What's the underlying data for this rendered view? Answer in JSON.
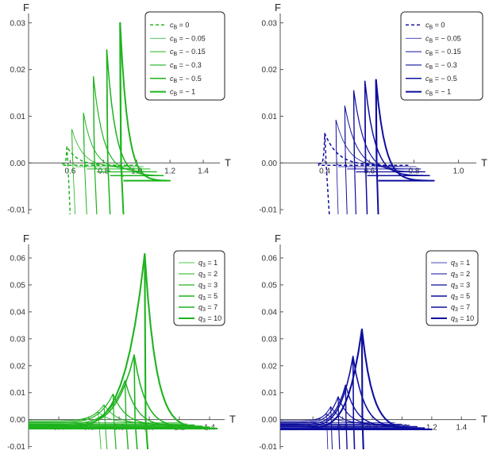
{
  "colors": {
    "green": "#1eb31e",
    "blue": "#0f0f9e",
    "axis": "#555555"
  },
  "chart_data": [
    {
      "id": "top-left",
      "type": "line",
      "xlabel": "T",
      "ylabel": "F",
      "xlim": [
        0.35,
        1.5
      ],
      "ylim": [
        -0.011,
        0.032
      ],
      "x_ticks": [
        0.6,
        0.8,
        1.0,
        1.2,
        1.4
      ],
      "x_tick_labels": [
        "0.6",
        "0.8",
        "1.0",
        "1.2",
        "1.4"
      ],
      "y_ticks": [
        -0.01,
        0.0,
        0.01,
        0.02,
        0.03
      ],
      "y_tick_labels": [
        "-0.01",
        "0.00",
        "0.01",
        "0.02",
        "0.03"
      ],
      "grid": false,
      "legend_position": "top-right",
      "color": "#1eb31e",
      "series": [
        {
          "name": "c_B = 0",
          "label_sub": "B",
          "label_rest": " = 0",
          "dashed": true,
          "width": 1.5,
          "cusp": [
            0.58,
            0.0035
          ],
          "low_end": [
            1.0,
            -0.0005
          ],
          "high_end": [
            0.55,
            -0.0002
          ],
          "branch_bottom": [
            0.6,
            -0.011
          ]
        },
        {
          "name": "c_B = − 0.05",
          "label_sub": "B",
          "label_rest": " = − 0.05",
          "dashed": false,
          "width": 0.8,
          "cusp": [
            0.61,
            0.0072
          ],
          "low_end": [
            1.04,
            -0.0008
          ],
          "high_end": [
            0.63,
            -0.0004
          ],
          "branch_bottom": [
            0.63,
            -0.011
          ]
        },
        {
          "name": "c_B = − 0.15",
          "label_sub": "B",
          "label_rest": " = − 0.15",
          "dashed": false,
          "width": 1.0,
          "cusp": [
            0.68,
            0.0107
          ],
          "low_end": [
            1.08,
            -0.0013
          ],
          "high_end": [
            0.7,
            -0.0007
          ],
          "branch_bottom": [
            0.7,
            -0.011
          ]
        },
        {
          "name": "c_B = − 0.3",
          "label_sub": "B",
          "label_rest": " = − 0.3",
          "dashed": false,
          "width": 1.2,
          "cusp": [
            0.74,
            0.0185
          ],
          "low_end": [
            1.12,
            -0.0019
          ],
          "high_end": [
            0.76,
            -0.0012
          ],
          "branch_bottom": [
            0.76,
            -0.011
          ]
        },
        {
          "name": "c_B = − 0.5",
          "label_sub": "B",
          "label_rest": " = − 0.5",
          "dashed": false,
          "width": 1.5,
          "cusp": [
            0.82,
            0.0242
          ],
          "low_end": [
            1.16,
            -0.0027
          ],
          "high_end": [
            0.84,
            -0.0018
          ],
          "branch_bottom": [
            0.84,
            -0.011
          ]
        },
        {
          "name": "c_B = − 1",
          "label_sub": "B",
          "label_rest": " = − 1",
          "dashed": false,
          "width": 2.0,
          "cusp": [
            0.9,
            0.03
          ],
          "low_end": [
            1.2,
            -0.0038
          ],
          "high_end": [
            0.92,
            -0.0028
          ],
          "branch_bottom": [
            0.92,
            -0.011
          ]
        }
      ]
    },
    {
      "id": "top-right",
      "type": "line",
      "xlabel": "T",
      "ylabel": "F",
      "xlim": [
        0.2,
        1.08
      ],
      "ylim": [
        -0.011,
        0.032
      ],
      "x_ticks": [
        0.4,
        0.6,
        0.8,
        1.0
      ],
      "x_tick_labels": [
        "0.4",
        "0.6",
        "0.8",
        "1.0"
      ],
      "y_ticks": [
        -0.01,
        0.0,
        0.01,
        0.02,
        0.03
      ],
      "y_tick_labels": [
        "-0.01",
        "0.00",
        "0.01",
        "0.02",
        "0.03"
      ],
      "grid": false,
      "legend_position": "top-right",
      "color": "#0f0f9e",
      "series": [
        {
          "name": "c_B = 0",
          "label_sub": "B",
          "label_rest": " = 0",
          "dashed": true,
          "width": 1.5,
          "cusp": [
            0.4,
            0.0063
          ],
          "low_end": [
            0.78,
            -0.0005
          ],
          "high_end": [
            0.37,
            -0.0002
          ],
          "branch_bottom": [
            0.42,
            -0.011
          ]
        },
        {
          "name": "c_B = − 0.05",
          "label_sub": "B",
          "label_rest": " = − 0.05",
          "dashed": false,
          "width": 0.8,
          "cusp": [
            0.45,
            0.0092
          ],
          "low_end": [
            0.81,
            -0.0008
          ],
          "high_end": [
            0.46,
            -0.0004
          ],
          "branch_bottom": [
            0.46,
            -0.011
          ]
        },
        {
          "name": "c_B = − 0.15",
          "label_sub": "B",
          "label_rest": " = − 0.15",
          "dashed": false,
          "width": 1.0,
          "cusp": [
            0.49,
            0.0122
          ],
          "low_end": [
            0.83,
            -0.0013
          ],
          "high_end": [
            0.5,
            -0.0007
          ],
          "branch_bottom": [
            0.5,
            -0.011
          ]
        },
        {
          "name": "c_B = − 0.3",
          "label_sub": "B",
          "label_rest": " = − 0.3",
          "dashed": false,
          "width": 1.2,
          "cusp": [
            0.53,
            0.0155
          ],
          "low_end": [
            0.85,
            -0.0019
          ],
          "high_end": [
            0.54,
            -0.0012
          ],
          "branch_bottom": [
            0.54,
            -0.011
          ]
        },
        {
          "name": "c_B = − 0.5",
          "label_sub": "B",
          "label_rest": " = − 0.5",
          "dashed": false,
          "width": 1.5,
          "cusp": [
            0.58,
            0.0175
          ],
          "low_end": [
            0.87,
            -0.0027
          ],
          "high_end": [
            0.59,
            -0.0018
          ],
          "branch_bottom": [
            0.59,
            -0.011
          ]
        },
        {
          "name": "c_B = − 1",
          "label_sub": "B",
          "label_rest": " = − 1",
          "dashed": false,
          "width": 2.0,
          "cusp": [
            0.63,
            0.0178
          ],
          "low_end": [
            0.89,
            -0.0038
          ],
          "high_end": [
            0.64,
            -0.0028
          ],
          "branch_bottom": [
            0.64,
            -0.011
          ]
        }
      ]
    },
    {
      "id": "bottom-left",
      "type": "line",
      "xlabel": "T",
      "ylabel": "F",
      "xlim": [
        0.2,
        1.5
      ],
      "ylim": [
        -0.011,
        0.065
      ],
      "x_ticks": [
        0.4,
        0.6,
        0.8,
        1.0,
        1.2,
        1.4
      ],
      "x_tick_labels": [
        "0.4",
        "0.6",
        "0.8",
        "1.0",
        "1.2",
        "1.4"
      ],
      "y_ticks": [
        -0.01,
        0.0,
        0.01,
        0.02,
        0.03,
        0.04,
        0.05,
        0.06
      ],
      "y_tick_labels": [
        "-0.01",
        "0.00",
        "0.01",
        "0.02",
        "0.03",
        "0.04",
        "0.05",
        "0.06"
      ],
      "grid": false,
      "legend_position": "top-right",
      "color": "#1eb31e",
      "series": [
        {
          "name": "q_3 = 1",
          "label_sub": "3",
          "label_rest": " = 1",
          "dashed": false,
          "width": 0.8,
          "cusp": [
            0.66,
            0.0028
          ],
          "low_end": [
            1.2,
            -0.0012
          ],
          "high_end": [
            0.2,
            -0.0004
          ],
          "branch_bottom": [
            0.68,
            -0.011
          ]
        },
        {
          "name": "q_3 = 2",
          "label_sub": "3",
          "label_rest": " = 2",
          "dashed": false,
          "width": 1.0,
          "cusp": [
            0.7,
            0.0055
          ],
          "low_end": [
            1.25,
            -0.0016
          ],
          "high_end": [
            0.2,
            -0.0008
          ],
          "branch_bottom": [
            0.72,
            -0.011
          ]
        },
        {
          "name": "q_3 = 3",
          "label_sub": "3",
          "label_rest": " = 3",
          "dashed": false,
          "width": 1.2,
          "cusp": [
            0.76,
            0.0095
          ],
          "low_end": [
            1.3,
            -0.002
          ],
          "high_end": [
            0.2,
            -0.0012
          ],
          "branch_bottom": [
            0.78,
            -0.011
          ]
        },
        {
          "name": "q_3 = 5",
          "label_sub": "3",
          "label_rest": " = 5",
          "dashed": false,
          "width": 1.4,
          "cusp": [
            0.84,
            0.0145
          ],
          "low_end": [
            1.35,
            -0.0024
          ],
          "high_end": [
            0.2,
            -0.0017
          ],
          "branch_bottom": [
            0.86,
            -0.011
          ]
        },
        {
          "name": "q_3 = 7",
          "label_sub": "3",
          "label_rest": " = 7",
          "dashed": false,
          "width": 1.6,
          "cusp": [
            0.9,
            0.024
          ],
          "low_end": [
            1.4,
            -0.0028
          ],
          "high_end": [
            0.2,
            -0.0023
          ],
          "branch_bottom": [
            0.92,
            -0.011
          ]
        },
        {
          "name": "q_3 = 10",
          "label_sub": "3",
          "label_rest": " = 10",
          "dashed": false,
          "width": 2.1,
          "cusp": [
            0.97,
            0.0615
          ],
          "low_end": [
            1.45,
            -0.0033
          ],
          "high_end": [
            0.2,
            -0.003
          ],
          "branch_bottom": [
            0.99,
            -0.011
          ]
        }
      ]
    },
    {
      "id": "bottom-right",
      "type": "line",
      "xlabel": "T",
      "ylabel": "F",
      "xlim": [
        0.18,
        1.5
      ],
      "ylim": [
        -0.011,
        0.065
      ],
      "x_ticks": [
        0.4,
        0.6,
        0.8,
        1.0,
        1.2,
        1.4
      ],
      "x_tick_labels": [
        "0.4",
        "0.6",
        "0.8",
        "1.0",
        "1.2",
        "1.4"
      ],
      "y_ticks": [
        -0.01,
        0.0,
        0.01,
        0.02,
        0.03,
        0.04,
        0.05,
        0.06
      ],
      "y_tick_labels": [
        "-0.01",
        "0.00",
        "0.01",
        "0.02",
        "0.03",
        "0.04",
        "0.05",
        "0.06"
      ],
      "grid": false,
      "legend_position": "top-right",
      "color": "#0f0f9e",
      "series": [
        {
          "name": "q_3 = 1",
          "label_sub": "3",
          "label_rest": " = 1",
          "dashed": false,
          "width": 0.8,
          "cusp": [
            0.49,
            0.0022
          ],
          "low_end": [
            0.95,
            -0.0012
          ],
          "high_end": [
            0.18,
            -0.0004
          ],
          "branch_bottom": [
            0.5,
            -0.011
          ]
        },
        {
          "name": "q_3 = 2",
          "label_sub": "3",
          "label_rest": " = 2",
          "dashed": false,
          "width": 1.0,
          "cusp": [
            0.52,
            0.0048
          ],
          "low_end": [
            1.0,
            -0.0017
          ],
          "high_end": [
            0.18,
            -0.0009
          ],
          "branch_bottom": [
            0.53,
            -0.011
          ]
        },
        {
          "name": "q_3 = 3",
          "label_sub": "3",
          "label_rest": " = 3",
          "dashed": false,
          "width": 1.2,
          "cusp": [
            0.57,
            0.0085
          ],
          "low_end": [
            1.05,
            -0.0021
          ],
          "high_end": [
            0.18,
            -0.0013
          ],
          "branch_bottom": [
            0.58,
            -0.011
          ]
        },
        {
          "name": "q_3 = 5",
          "label_sub": "3",
          "label_rest": " = 5",
          "dashed": false,
          "width": 1.4,
          "cusp": [
            0.62,
            0.0128
          ],
          "low_end": [
            1.1,
            -0.0026
          ],
          "high_end": [
            0.18,
            -0.0018
          ],
          "branch_bottom": [
            0.63,
            -0.011
          ]
        },
        {
          "name": "q_3 = 7",
          "label_sub": "3",
          "label_rest": " = 7",
          "dashed": false,
          "width": 1.6,
          "cusp": [
            0.67,
            0.0235
          ],
          "low_end": [
            1.15,
            -0.0031
          ],
          "high_end": [
            0.18,
            -0.0025
          ],
          "branch_bottom": [
            0.68,
            -0.011
          ]
        },
        {
          "name": "q_3 = 10",
          "label_sub": "3",
          "label_rest": " = 10",
          "dashed": false,
          "width": 2.1,
          "cusp": [
            0.73,
            0.0335
          ],
          "low_end": [
            1.2,
            -0.0036
          ],
          "high_end": [
            0.18,
            -0.0032
          ],
          "branch_bottom": [
            0.74,
            -0.011
          ]
        }
      ]
    }
  ]
}
